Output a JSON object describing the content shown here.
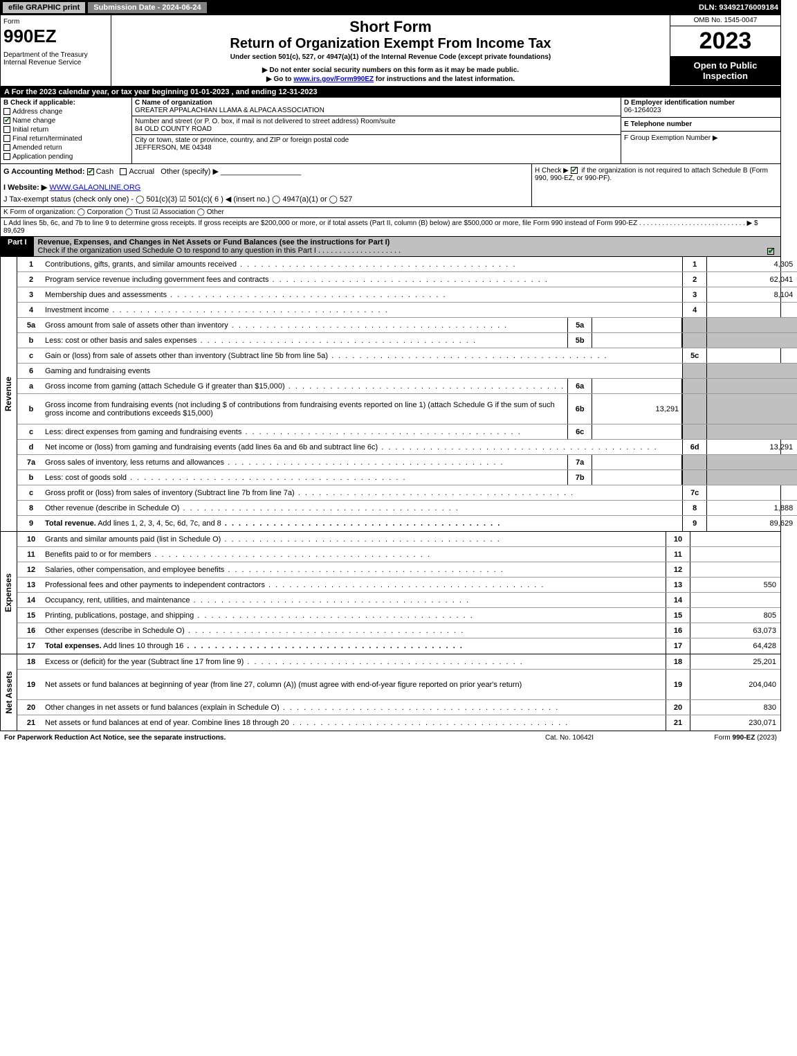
{
  "topbar": {
    "efile": "efile GRAPHIC print",
    "subdate_label": "Submission Date - ",
    "subdate": "2024-06-24",
    "dln_label": "DLN: ",
    "dln": "93492176009184"
  },
  "header": {
    "form": "Form",
    "formno": "990EZ",
    "dept": "Department of the Treasury\nInternal Revenue Service",
    "short": "Short Form",
    "title": "Return of Organization Exempt From Income Tax",
    "sub1": "Under section 501(c), 527, or 4947(a)(1) of the Internal Revenue Code (except private foundations)",
    "sub2": "▶ Do not enter social security numbers on this form as it may be made public.",
    "sub3_pre": "▶ Go to ",
    "sub3_link": "www.irs.gov/Form990EZ",
    "sub3_post": " for instructions and the latest information.",
    "omb": "OMB No. 1545-0047",
    "year": "2023",
    "open": "Open to Public Inspection"
  },
  "A": "A  For the 2023 calendar year, or tax year beginning 01-01-2023 , and ending 12-31-2023",
  "B": {
    "label": "B  Check if applicable:",
    "items": [
      {
        "checked": false,
        "label": "Address change"
      },
      {
        "checked": true,
        "label": "Name change"
      },
      {
        "checked": false,
        "label": "Initial return"
      },
      {
        "checked": false,
        "label": "Final return/terminated"
      },
      {
        "checked": false,
        "label": "Amended return"
      },
      {
        "checked": false,
        "label": "Application pending"
      }
    ]
  },
  "C": {
    "name_lbl": "C Name of organization",
    "name": "GREATER APPALACHIAN LLAMA & ALPACA ASSOCIATION",
    "street_lbl": "Number and street (or P. O. box, if mail is not delivered to street address)       Room/suite",
    "street": "84 OLD COUNTY ROAD",
    "city_lbl": "City or town, state or province, country, and ZIP or foreign postal code",
    "city": "JEFFERSON, ME  04348"
  },
  "D": {
    "ein_lbl": "D Employer identification number",
    "ein": "06-1264023",
    "tel_lbl": "E Telephone number",
    "tel": "",
    "grp_lbl": "F Group Exemption Number   ▶",
    "grp": ""
  },
  "G": {
    "label": "G Accounting Method:  ",
    "cash": "Cash",
    "accrual": "Accrual",
    "other": "Other (specify) ▶",
    "cash_checked": true,
    "accrual_checked": false
  },
  "H": {
    "text": "H  Check ▶ ",
    "after": " if the organization is not required to attach Schedule B (Form 990, 990-EZ, or 990-PF).",
    "checked": true
  },
  "I": {
    "label": "I Website: ▶",
    "value": "WWW.GALAONLINE.ORG"
  },
  "J": {
    "text": "J Tax-exempt status (check only one) -  ◯ 501(c)(3)  ☑ 501(c)( 6 ) ◀ (insert no.)  ◯ 4947(a)(1) or  ◯ 527"
  },
  "K": {
    "text": "K Form of organization:  ◯ Corporation  ◯ Trust  ☑ Association  ◯ Other"
  },
  "L": {
    "text": "L Add lines 5b, 6c, and 7b to line 9 to determine gross receipts. If gross receipts are $200,000 or more, or if total assets (Part II, column (B) below) are $500,000 or more, file Form 990 instead of Form 990-EZ  .  .  .  .  .  .  .  .  .  .  .  .  .  .  .  .  .  .  .  .  .  .  .  .  .  .  .  .  ▶ $ ",
    "amount": "89,629"
  },
  "part1": {
    "tag": "Part I",
    "title": "Revenue, Expenses, and Changes in Net Assets or Fund Balances (see the instructions for Part I)",
    "check_line": "Check if the organization used Schedule O to respond to any question in this Part I",
    "checked": true
  },
  "revenue": {
    "label": "Revenue",
    "lines": [
      {
        "no": "1",
        "desc": "Contributions, gifts, grants, and similar amounts received",
        "rno": "1",
        "ramt": "4,305"
      },
      {
        "no": "2",
        "desc": "Program service revenue including government fees and contracts",
        "rno": "2",
        "ramt": "62,041"
      },
      {
        "no": "3",
        "desc": "Membership dues and assessments",
        "rno": "3",
        "ramt": "8,104"
      },
      {
        "no": "4",
        "desc": "Investment income",
        "rno": "4",
        "ramt": ""
      },
      {
        "no": "5a",
        "desc": "Gross amount from sale of assets other than inventory",
        "subno": "5a",
        "subamt": "",
        "rshade": true
      },
      {
        "no": "b",
        "desc": "Less: cost or other basis and sales expenses",
        "subno": "5b",
        "subamt": "",
        "rshade": true
      },
      {
        "no": "c",
        "desc": "Gain or (loss) from sale of assets other than inventory (Subtract line 5b from line 5a)",
        "rno": "5c",
        "ramt": ""
      },
      {
        "no": "6",
        "desc": "Gaming and fundraising events",
        "rshade": true,
        "nodots": true
      },
      {
        "no": "a",
        "desc": "Gross income from gaming (attach Schedule G if greater than $15,000)",
        "subno": "6a",
        "subamt": "",
        "rshade": true
      },
      {
        "no": "b",
        "desc": "Gross income from fundraising events (not including $                  of contributions from fundraising events reported on line 1) (attach Schedule G if the sum of such gross income and contributions exceeds $15,000)",
        "subno": "6b",
        "subamt": "13,291",
        "rshade": true,
        "tall": true
      },
      {
        "no": "c",
        "desc": "Less: direct expenses from gaming and fundraising events",
        "subno": "6c",
        "subamt": "",
        "rshade": true
      },
      {
        "no": "d",
        "desc": "Net income or (loss) from gaming and fundraising events (add lines 6a and 6b and subtract line 6c)",
        "rno": "6d",
        "ramt": "13,291"
      },
      {
        "no": "7a",
        "desc": "Gross sales of inventory, less returns and allowances",
        "subno": "7a",
        "subamt": "",
        "rshade": true
      },
      {
        "no": "b",
        "desc": "Less: cost of goods sold",
        "subno": "7b",
        "subamt": "",
        "rshade": true
      },
      {
        "no": "c",
        "desc": "Gross profit or (loss) from sales of inventory (Subtract line 7b from line 7a)",
        "rno": "7c",
        "ramt": ""
      },
      {
        "no": "8",
        "desc": "Other revenue (describe in Schedule O)",
        "rno": "8",
        "ramt": "1,888"
      },
      {
        "no": "9",
        "desc": "Total revenue. Add lines 1, 2, 3, 4, 5c, 6d, 7c, and 8",
        "rno": "9",
        "ramt": "89,629",
        "bold": true,
        "arrow": true
      }
    ]
  },
  "expenses": {
    "label": "Expenses",
    "lines": [
      {
        "no": "10",
        "desc": "Grants and similar amounts paid (list in Schedule O)",
        "rno": "10",
        "ramt": ""
      },
      {
        "no": "11",
        "desc": "Benefits paid to or for members",
        "rno": "11",
        "ramt": ""
      },
      {
        "no": "12",
        "desc": "Salaries, other compensation, and employee benefits",
        "rno": "12",
        "ramt": ""
      },
      {
        "no": "13",
        "desc": "Professional fees and other payments to independent contractors",
        "rno": "13",
        "ramt": "550"
      },
      {
        "no": "14",
        "desc": "Occupancy, rent, utilities, and maintenance",
        "rno": "14",
        "ramt": ""
      },
      {
        "no": "15",
        "desc": "Printing, publications, postage, and shipping",
        "rno": "15",
        "ramt": "805"
      },
      {
        "no": "16",
        "desc": "Other expenses (describe in Schedule O)",
        "rno": "16",
        "ramt": "63,073"
      },
      {
        "no": "17",
        "desc": "Total expenses. Add lines 10 through 16",
        "rno": "17",
        "ramt": "64,428",
        "bold": true,
        "arrow": true
      }
    ]
  },
  "netassets": {
    "label": "Net Assets",
    "lines": [
      {
        "no": "18",
        "desc": "Excess or (deficit) for the year (Subtract line 17 from line 9)",
        "rno": "18",
        "ramt": "25,201"
      },
      {
        "no": "19",
        "desc": "Net assets or fund balances at beginning of year (from line 27, column (A)) (must agree with end-of-year figure reported on prior year's return)",
        "rno": "19",
        "ramt": "204,040",
        "tall": true
      },
      {
        "no": "20",
        "desc": "Other changes in net assets or fund balances (explain in Schedule O)",
        "rno": "20",
        "ramt": "830"
      },
      {
        "no": "21",
        "desc": "Net assets or fund balances at end of year. Combine lines 18 through 20",
        "rno": "21",
        "ramt": "230,071"
      }
    ]
  },
  "footer": {
    "l": "For Paperwork Reduction Act Notice, see the separate instructions.",
    "c": "Cat. No. 10642I",
    "r": "Form 990-EZ (2023)"
  },
  "colors": {
    "black": "#000000",
    "gray": "#c0c0c0",
    "midgray": "#808080",
    "link": "#0000ee",
    "check_green": "#006600"
  }
}
